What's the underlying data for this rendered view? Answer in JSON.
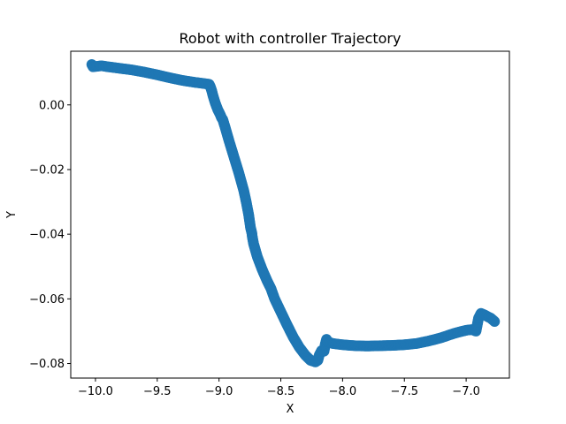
{
  "chart_data": {
    "type": "scatter",
    "title": "Robot with controller Trajectory",
    "xlabel": "X",
    "ylabel": "Y",
    "xlim": [
      -10.2,
      -6.65
    ],
    "ylim": [
      -0.0845,
      0.0166
    ],
    "xticks": [
      -10.0,
      -9.5,
      -9.0,
      -8.5,
      -8.0,
      -7.5,
      -7.0
    ],
    "xtick_labels": [
      "−10.0",
      "−9.5",
      "−9.0",
      "−8.5",
      "−8.0",
      "−7.5",
      "−7.0"
    ],
    "yticks": [
      0.0,
      -0.02,
      -0.04,
      -0.06,
      -0.08
    ],
    "ytick_labels": [
      "0.00",
      "−0.02",
      "−0.04",
      "−0.06",
      "−0.08"
    ],
    "grid": false,
    "color": "#1f77b4",
    "series": [
      {
        "points": [
          [
            -10.03,
            0.0125
          ],
          [
            -10.02,
            0.0118
          ],
          [
            -9.95,
            0.0121
          ],
          [
            -9.9,
            0.0118
          ],
          [
            -9.8,
            0.0113
          ],
          [
            -9.7,
            0.0108
          ],
          [
            -9.6,
            0.0101
          ],
          [
            -9.5,
            0.0093
          ],
          [
            -9.4,
            0.0084
          ],
          [
            -9.3,
            0.0076
          ],
          [
            -9.2,
            0.007
          ],
          [
            -9.12,
            0.0066
          ],
          [
            -9.08,
            0.0064
          ],
          [
            -9.07,
            0.0056
          ],
          [
            -9.06,
            0.0045
          ],
          [
            -9.05,
            0.003
          ],
          [
            -9.03,
            0.0005
          ],
          [
            -9.01,
            -0.0015
          ],
          [
            -8.99,
            -0.003
          ],
          [
            -8.98,
            -0.004
          ],
          [
            -8.97,
            -0.0045
          ],
          [
            -8.95,
            -0.007
          ],
          [
            -8.92,
            -0.011
          ],
          [
            -8.88,
            -0.016
          ],
          [
            -8.84,
            -0.021
          ],
          [
            -8.8,
            -0.0265
          ],
          [
            -8.78,
            -0.03
          ],
          [
            -8.76,
            -0.034
          ],
          [
            -8.745,
            -0.038
          ],
          [
            -8.735,
            -0.0395
          ],
          [
            -8.73,
            -0.041
          ],
          [
            -8.72,
            -0.043
          ],
          [
            -8.69,
            -0.047
          ],
          [
            -8.65,
            -0.051
          ],
          [
            -8.61,
            -0.0545
          ],
          [
            -8.58,
            -0.0568
          ],
          [
            -8.55,
            -0.06
          ],
          [
            -8.5,
            -0.064
          ],
          [
            -8.45,
            -0.068
          ],
          [
            -8.4,
            -0.0718
          ],
          [
            -8.35,
            -0.075
          ],
          [
            -8.3,
            -0.0775
          ],
          [
            -8.26,
            -0.079
          ],
          [
            -8.22,
            -0.0795
          ],
          [
            -8.2,
            -0.079
          ],
          [
            -8.19,
            -0.0775
          ],
          [
            -8.17,
            -0.076
          ],
          [
            -8.15,
            -0.0762
          ],
          [
            -8.14,
            -0.074
          ],
          [
            -8.13,
            -0.0725
          ],
          [
            -8.12,
            -0.0733
          ],
          [
            -8.08,
            -0.0738
          ],
          [
            -8.0,
            -0.0742
          ],
          [
            -7.9,
            -0.0745
          ],
          [
            -7.8,
            -0.0746
          ],
          [
            -7.7,
            -0.0745
          ],
          [
            -7.6,
            -0.0744
          ],
          [
            -7.5,
            -0.0742
          ],
          [
            -7.4,
            -0.0738
          ],
          [
            -7.3,
            -0.073
          ],
          [
            -7.2,
            -0.072
          ],
          [
            -7.1,
            -0.0707
          ],
          [
            -7.0,
            -0.0697
          ],
          [
            -6.95,
            -0.0695
          ],
          [
            -6.92,
            -0.07
          ],
          [
            -6.9,
            -0.066
          ],
          [
            -6.88,
            -0.0645
          ],
          [
            -6.85,
            -0.065
          ],
          [
            -6.8,
            -0.066
          ],
          [
            -6.77,
            -0.067
          ]
        ]
      }
    ]
  }
}
